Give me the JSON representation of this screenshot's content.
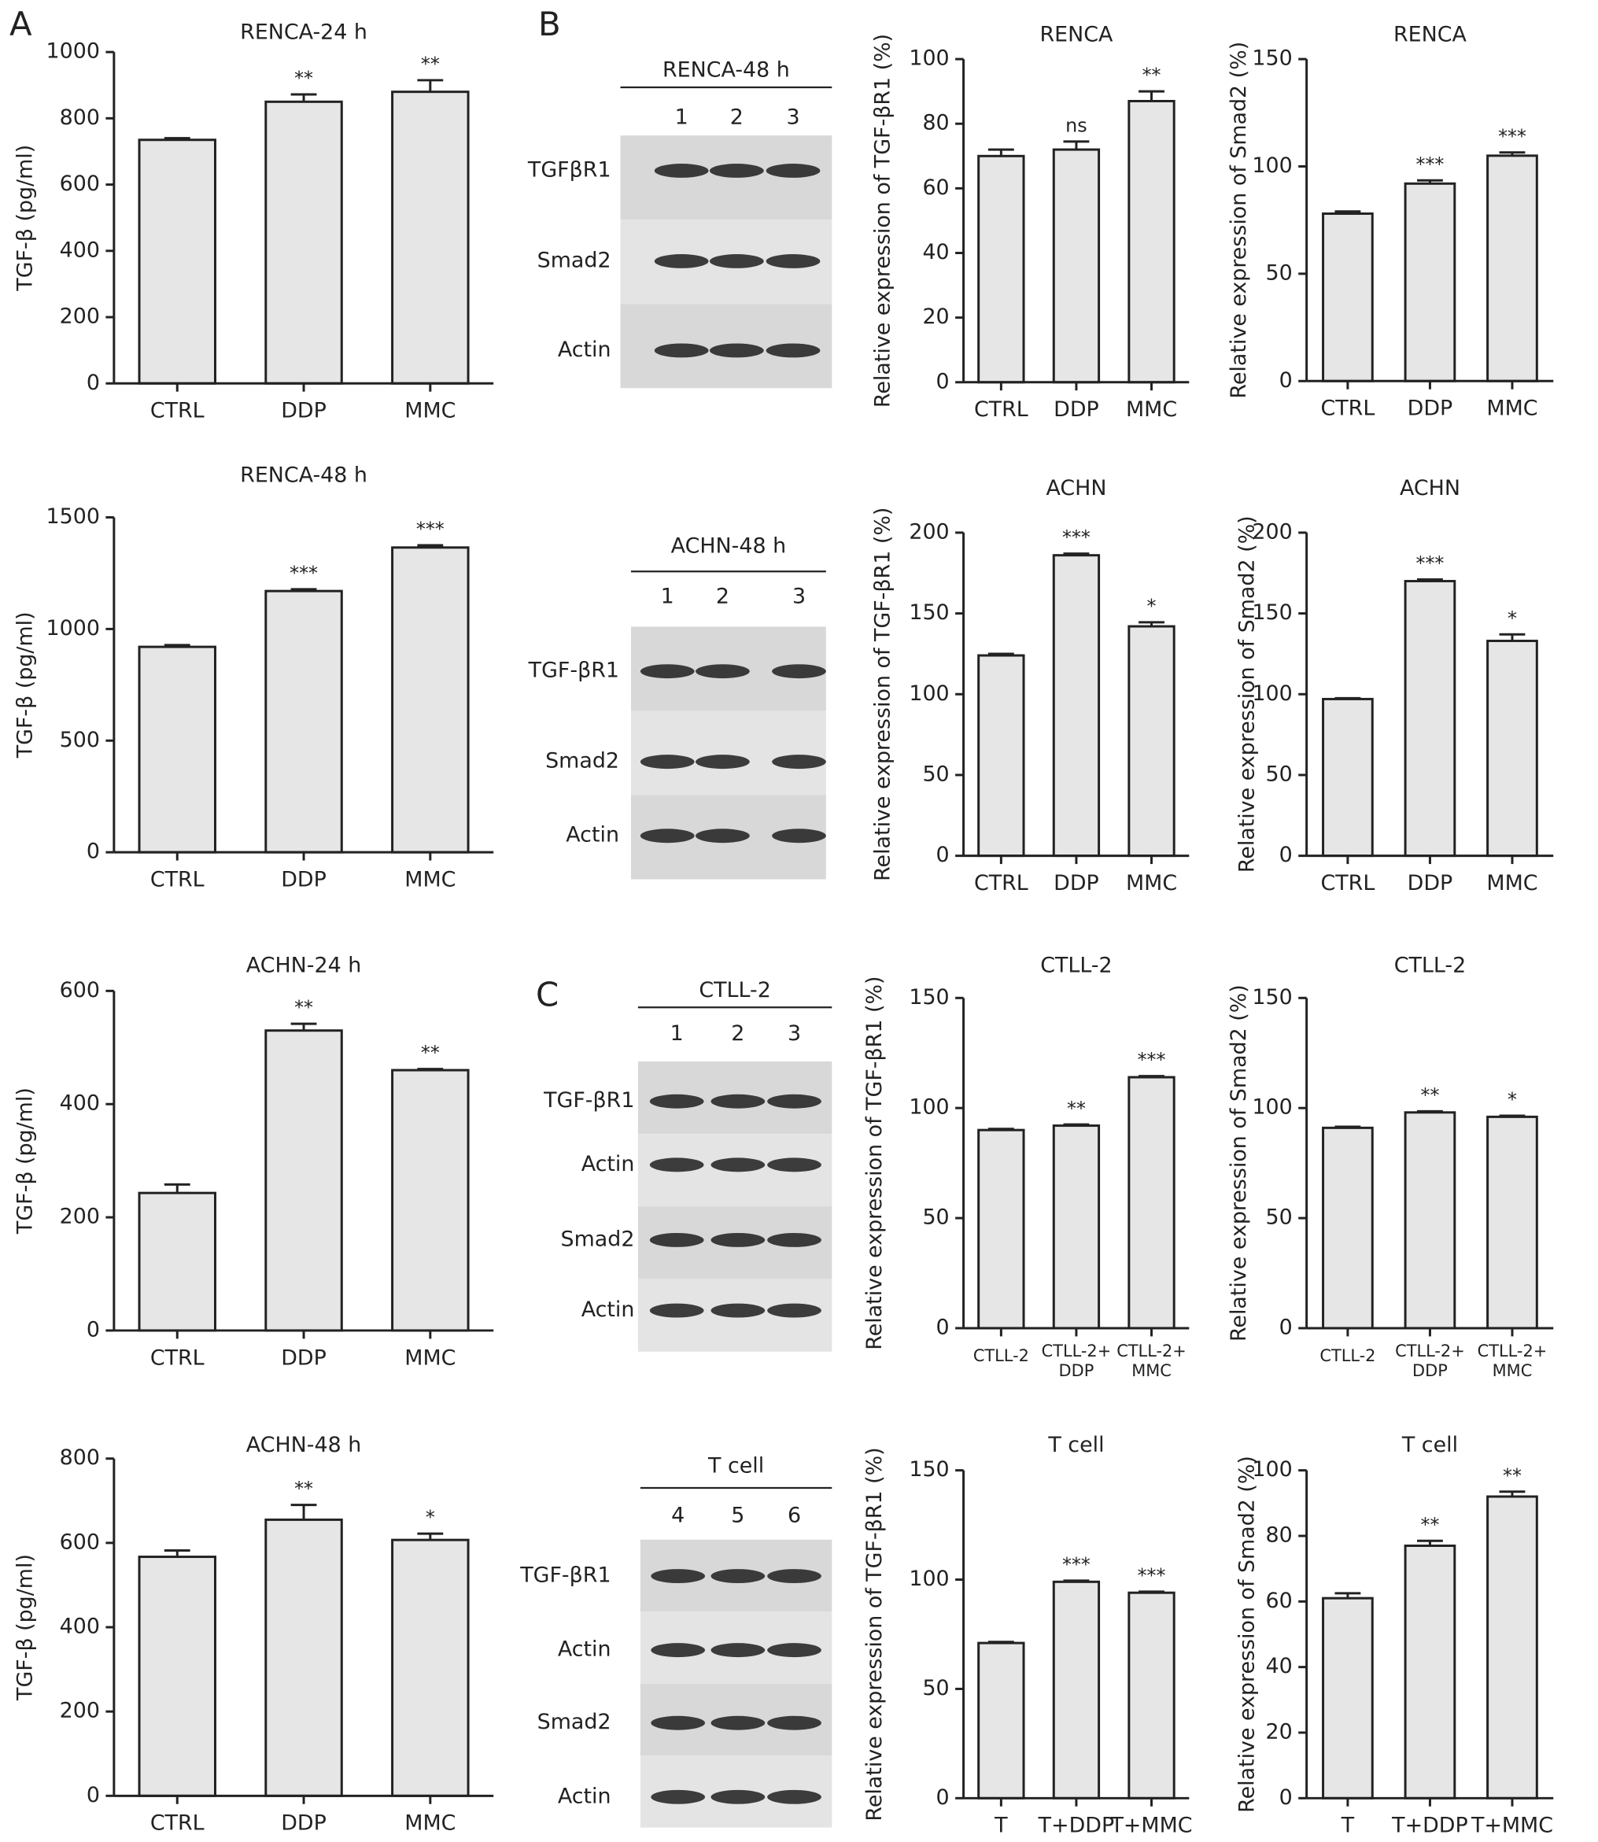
{
  "panel_labels": [
    "A",
    "B",
    "C"
  ],
  "blots": [
    {
      "title": "RENCA-48 h",
      "lanes": [
        "1",
        "2",
        "3"
      ],
      "rows": [
        "TGFβR1",
        "Smad2",
        "Actin"
      ]
    },
    {
      "title": "ACHN-48 h",
      "lanes": [
        "1",
        "2",
        "3"
      ],
      "rows": [
        "TGF-βR1",
        "Smad2",
        "Actin"
      ]
    },
    {
      "title": "CTLL-2",
      "lanes": [
        "1",
        "2",
        "3"
      ],
      "rows": [
        "TGF-βR1",
        "Actin",
        "Smad2",
        "Actin"
      ]
    },
    {
      "title": "T cell",
      "lanes": [
        "4",
        "5",
        "6"
      ],
      "rows": [
        "TGF-βR1",
        "Actin",
        "Smad2",
        "Actin"
      ]
    }
  ],
  "chart_data": [
    {
      "type": "bar",
      "title": "RENCA-24 h",
      "y_label": "TGF-β (pg/ml)",
      "categories": [
        "CTRL",
        "DDP",
        "MMC"
      ],
      "values": [
        735,
        850,
        880
      ],
      "errors": [
        5,
        22,
        35
      ],
      "annotations": [
        null,
        "**",
        "**"
      ],
      "color": "#e6e6e6",
      "ylim": [
        0,
        1000
      ],
      "yticks": [
        0,
        200,
        400,
        600,
        800,
        1000
      ]
    },
    {
      "type": "bar",
      "title": "RENCA-48 h",
      "y_label": "TGF-β (pg/ml)",
      "categories": [
        "CTRL",
        "DDP",
        "MMC"
      ],
      "values": [
        920,
        1170,
        1365
      ],
      "errors": [
        8,
        8,
        10
      ],
      "annotations": [
        null,
        "***",
        "***"
      ],
      "color": "#e6e6e6",
      "ylim": [
        0,
        1500
      ],
      "yticks": [
        0,
        500,
        1000,
        1500
      ]
    },
    {
      "type": "bar",
      "title": "ACHN-24 h",
      "y_label": "TGF-β (pg/ml)",
      "categories": [
        "CTRL",
        "DDP",
        "MMC"
      ],
      "values": [
        243,
        530,
        460
      ],
      "errors": [
        15,
        12,
        2
      ],
      "annotations": [
        null,
        "**",
        "**"
      ],
      "color": "#e6e6e6",
      "ylim": [
        0,
        600
      ],
      "yticks": [
        0,
        200,
        400,
        600
      ]
    },
    {
      "type": "bar",
      "title": "ACHN-48 h",
      "y_label": "TGF-β (pg/ml)",
      "categories": [
        "CTRL",
        "DDP",
        "MMC"
      ],
      "values": [
        567,
        655,
        607
      ],
      "errors": [
        15,
        35,
        15
      ],
      "annotations": [
        null,
        "**",
        "*"
      ],
      "color": "#e6e6e6",
      "ylim": [
        0,
        800
      ],
      "yticks": [
        0,
        200,
        400,
        600,
        800
      ]
    },
    {
      "type": "bar",
      "title": "RENCA",
      "y_label": "Relative expression of TGF-βR1 (%)",
      "categories": [
        "CTRL",
        "DDP",
        "MMC"
      ],
      "values": [
        70,
        72,
        87
      ],
      "errors": [
        2,
        2.5,
        3
      ],
      "annotations": [
        null,
        "ns",
        "**"
      ],
      "color": "#e6e6e6",
      "ylim": [
        0,
        100
      ],
      "yticks": [
        0,
        20,
        40,
        60,
        80,
        100
      ]
    },
    {
      "type": "bar",
      "title": "RENCA",
      "y_label": "Relative expression of Smad2 (%)",
      "categories": [
        "CTRL",
        "DDP",
        "MMC"
      ],
      "values": [
        78,
        92,
        105
      ],
      "errors": [
        1,
        1.5,
        1.5
      ],
      "annotations": [
        null,
        "***",
        "***"
      ],
      "color": "#e6e6e6",
      "ylim": [
        0,
        150
      ],
      "yticks": [
        0,
        50,
        100,
        150
      ]
    },
    {
      "type": "bar",
      "title": "ACHN",
      "y_label": "Relative expression of  TGF-βR1 (%)",
      "categories": [
        "CTRL",
        "DDP",
        "MMC"
      ],
      "values": [
        124,
        186,
        142
      ],
      "errors": [
        1,
        1,
        2.5
      ],
      "annotations": [
        null,
        "***",
        "*"
      ],
      "color": "#e6e6e6",
      "ylim": [
        0,
        200
      ],
      "yticks": [
        0,
        50,
        100,
        150,
        200
      ]
    },
    {
      "type": "bar",
      "title": "ACHN",
      "y_label": "Relative expression of Smad2 (%)",
      "categories": [
        "CTRL",
        "DDP",
        "MMC"
      ],
      "values": [
        97,
        170,
        133
      ],
      "errors": [
        0.5,
        1,
        4
      ],
      "annotations": [
        null,
        "***",
        "*"
      ],
      "color": "#e6e6e6",
      "ylim": [
        0,
        200
      ],
      "yticks": [
        0,
        50,
        100,
        150,
        200
      ]
    },
    {
      "type": "bar",
      "title": "CTLL-2",
      "y_label": "Relative expression of  TGF-βR1 (%)",
      "categories": [
        "CTLL-2",
        "CTLL-2+\nDDP",
        "CTLL-2+\nMMC"
      ],
      "values": [
        90,
        92,
        114
      ],
      "errors": [
        0.5,
        0.5,
        0.5
      ],
      "annotations": [
        null,
        "**",
        "***"
      ],
      "color": "#e6e6e6",
      "ylim": [
        0,
        150
      ],
      "yticks": [
        0,
        50,
        100,
        150
      ]
    },
    {
      "type": "bar",
      "title": "CTLL-2",
      "y_label": "Relative expression of Smad2 (%)",
      "categories": [
        "CTLL-2",
        "CTLL-2+\nDDP",
        "CTLL-2+\nMMC"
      ],
      "values": [
        91,
        98,
        96
      ],
      "errors": [
        0.5,
        0.5,
        0.5
      ],
      "annotations": [
        null,
        "**",
        "*"
      ],
      "color": "#e6e6e6",
      "ylim": [
        0,
        150
      ],
      "yticks": [
        0,
        50,
        100,
        150
      ]
    },
    {
      "type": "bar",
      "title": "T cell",
      "y_label": "Relative expression of  TGF-βR1 (%)",
      "categories": [
        "T",
        "T+DDP",
        "T+MMC"
      ],
      "values": [
        71,
        99,
        94
      ],
      "errors": [
        0.5,
        0.5,
        0.5
      ],
      "annotations": [
        null,
        "***",
        "***"
      ],
      "color": "#e6e6e6",
      "ylim": [
        0,
        150
      ],
      "yticks": [
        0,
        50,
        100,
        150
      ]
    },
    {
      "type": "bar",
      "title": "T cell",
      "y_label": "Relative expression of Smad2 (%)",
      "categories": [
        "T",
        "T+DDP",
        "T+MMC"
      ],
      "values": [
        61,
        77,
        92
      ],
      "errors": [
        1.5,
        1.5,
        1.5
      ],
      "annotations": [
        null,
        "**",
        "**"
      ],
      "color": "#e6e6e6",
      "ylim": [
        0,
        100
      ],
      "yticks": [
        0,
        20,
        40,
        60,
        80,
        100
      ]
    }
  ]
}
